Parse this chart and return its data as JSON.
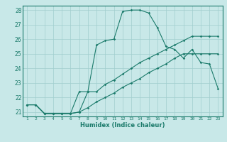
{
  "xlabel": "Humidex (Indice chaleur)",
  "x": [
    1,
    2,
    3,
    4,
    5,
    6,
    7,
    8,
    9,
    10,
    11,
    12,
    13,
    14,
    15,
    16,
    17,
    18,
    19,
    20,
    21,
    22,
    23
  ],
  "line1": [
    21.5,
    21.5,
    20.9,
    20.9,
    20.9,
    20.9,
    21.0,
    22.4,
    25.6,
    25.9,
    26.0,
    27.9,
    28.0,
    28.0,
    27.8,
    26.8,
    25.5,
    25.3,
    24.7,
    25.3,
    24.4,
    24.3,
    22.6
  ],
  "line2": [
    21.5,
    21.5,
    20.9,
    20.9,
    20.9,
    20.9,
    22.4,
    22.4,
    22.4,
    22.9,
    23.2,
    23.6,
    24.0,
    24.4,
    24.7,
    25.0,
    25.3,
    25.6,
    25.9,
    26.2,
    26.2,
    26.2,
    26.2
  ],
  "line3": [
    21.5,
    21.5,
    20.9,
    20.9,
    20.9,
    20.9,
    21.0,
    21.3,
    21.7,
    22.0,
    22.3,
    22.7,
    23.0,
    23.3,
    23.7,
    24.0,
    24.3,
    24.7,
    25.0,
    25.0,
    25.0,
    25.0,
    25.0
  ],
  "line_color": "#1a7a6a",
  "bg_color": "#c8e8e8",
  "grid_color": "#a0cece",
  "ylim_min": 20.7,
  "ylim_max": 28.3,
  "yticks": [
    21,
    22,
    23,
    24,
    25,
    26,
    27,
    28
  ]
}
